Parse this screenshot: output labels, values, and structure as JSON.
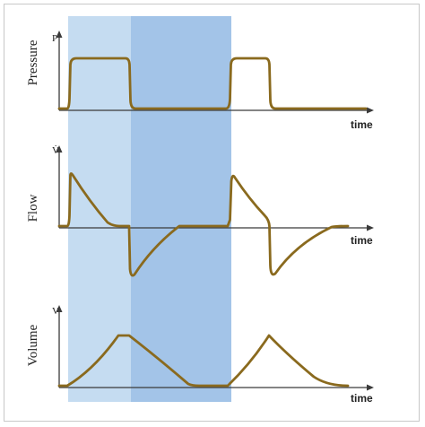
{
  "colors": {
    "inspiration_band": "#c5dcf1",
    "expiration_band": "#a3c4e8",
    "curve": "#8a6a1e",
    "axis": "#3a3a3a"
  },
  "panels": {
    "pressure": {
      "label": "Pressure",
      "axis_letter": "P",
      "time_label": "time"
    },
    "flow": {
      "label": "Flow",
      "axis_letter": "V̇",
      "time_label": "time"
    },
    "volume": {
      "label": "Volume",
      "axis_letter": "V",
      "time_label": "time"
    }
  }
}
